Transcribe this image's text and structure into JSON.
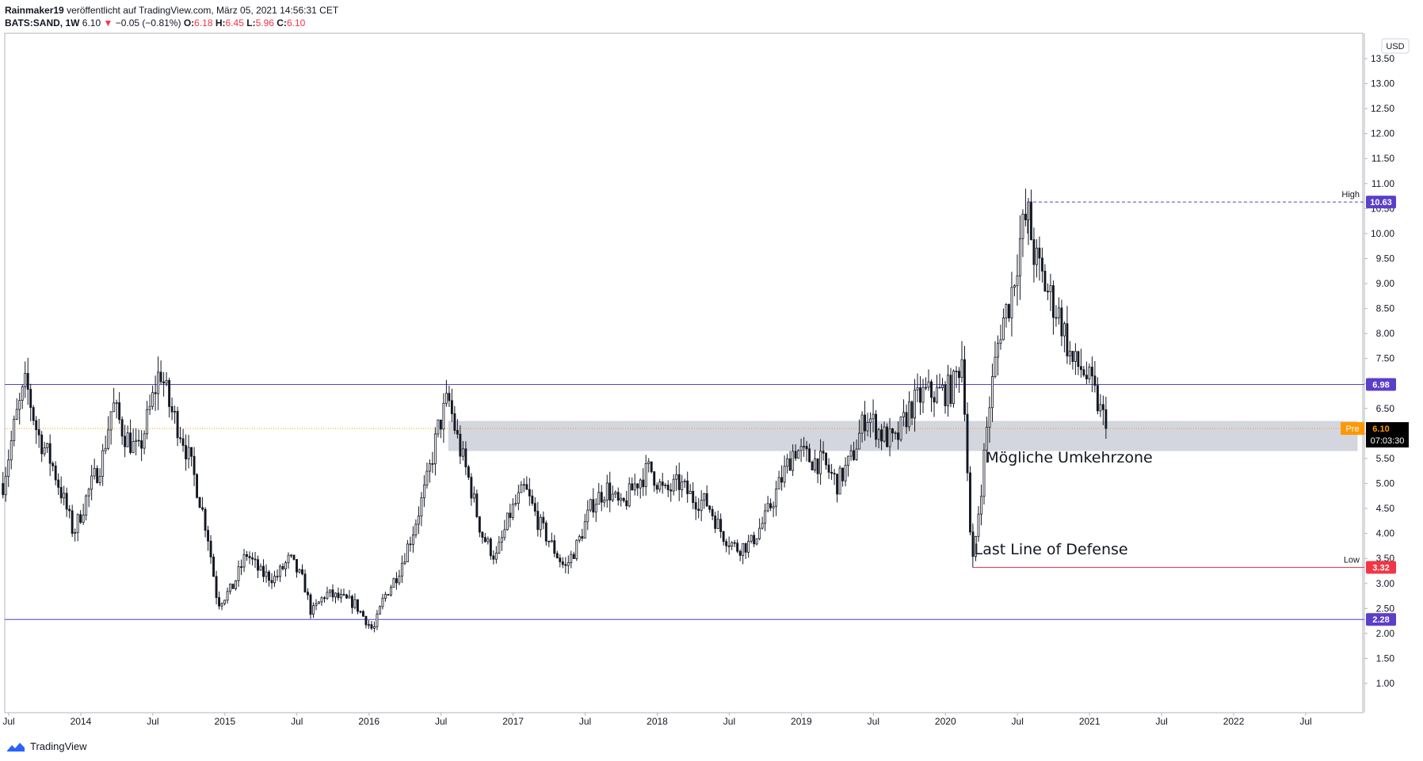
{
  "header": {
    "author": "Rainmaker19",
    "published": "veröffentlicht auf TradingView.com, März 05, 2021 14:56:31 CET",
    "symbol": "BATS:SAND, 1W",
    "last": "6.10",
    "change": "−0.05 (−0.81%)",
    "o_label": "O:",
    "o": "6.18",
    "h_label": "H:",
    "h": "6.45",
    "l_label": "L:",
    "l": "5.96",
    "c_label": "C:",
    "c": "6.10"
  },
  "footer": {
    "brand": "TradingView"
  },
  "colors": {
    "candle": "#131722",
    "hline": "#5b3fc9",
    "badge": "#5b3fc9",
    "low_line": "#f23645",
    "pre": "#ff9800",
    "zone": "#d1d4dc",
    "axis_text": "#131722"
  },
  "chart_data": {
    "type": "candlestick",
    "currency": "USD",
    "y_axis": {
      "min": 0.5,
      "max": 14,
      "ticks": [
        "1.00",
        "1.50",
        "2.00",
        "2.50",
        "3.00",
        "3.50",
        "4.00",
        "4.50",
        "5.00",
        "5.50",
        "6.00",
        "6.50",
        "7.00",
        "7.50",
        "8.00",
        "8.50",
        "9.00",
        "9.50",
        "10.00",
        "10.50",
        "11.00",
        "11.50",
        "12.00",
        "12.50",
        "13.00",
        "13.50"
      ]
    },
    "x_axis": {
      "start": 2013.46,
      "end": 2022.93,
      "ticks": [
        {
          "t": 2013.5,
          "label": "Jul"
        },
        {
          "t": 2014.0,
          "label": "2014"
        },
        {
          "t": 2014.5,
          "label": "Jul"
        },
        {
          "t": 2015.0,
          "label": "2015"
        },
        {
          "t": 2015.5,
          "label": "Jul"
        },
        {
          "t": 2016.0,
          "label": "2016"
        },
        {
          "t": 2016.5,
          "label": "Jul"
        },
        {
          "t": 2017.0,
          "label": "2017"
        },
        {
          "t": 2017.5,
          "label": "Jul"
        },
        {
          "t": 2018.0,
          "label": "2018"
        },
        {
          "t": 2018.5,
          "label": "Jul"
        },
        {
          "t": 2019.0,
          "label": "2019"
        },
        {
          "t": 2019.5,
          "label": "Jul"
        },
        {
          "t": 2020.0,
          "label": "2020"
        },
        {
          "t": 2020.5,
          "label": "Jul"
        },
        {
          "t": 2021.0,
          "label": "2021"
        },
        {
          "t": 2021.5,
          "label": "Jul"
        },
        {
          "t": 2022.0,
          "label": "2022"
        },
        {
          "t": 2022.5,
          "label": "Jul"
        }
      ]
    },
    "weekly_close_path": [
      [
        2013.46,
        5.0
      ],
      [
        2013.55,
        6.3
      ],
      [
        2013.62,
        7.0
      ],
      [
        2013.7,
        6.0
      ],
      [
        2013.8,
        5.4
      ],
      [
        2013.9,
        4.5
      ],
      [
        2013.95,
        4.0
      ],
      [
        2014.05,
        4.8
      ],
      [
        2014.15,
        5.5
      ],
      [
        2014.22,
        6.6
      ],
      [
        2014.3,
        6.0
      ],
      [
        2014.4,
        5.6
      ],
      [
        2014.5,
        6.7
      ],
      [
        2014.55,
        7.3
      ],
      [
        2014.62,
        6.5
      ],
      [
        2014.7,
        6.0
      ],
      [
        2014.8,
        5.0
      ],
      [
        2014.88,
        4.0
      ],
      [
        2014.95,
        2.6
      ],
      [
        2015.05,
        2.9
      ],
      [
        2015.15,
        3.6
      ],
      [
        2015.25,
        3.2
      ],
      [
        2015.35,
        3.1
      ],
      [
        2015.45,
        3.5
      ],
      [
        2015.55,
        3.0
      ],
      [
        2015.6,
        2.4
      ],
      [
        2015.7,
        2.8
      ],
      [
        2015.8,
        2.7
      ],
      [
        2015.9,
        2.6
      ],
      [
        2016.03,
        2.05
      ],
      [
        2016.1,
        2.7
      ],
      [
        2016.2,
        3.2
      ],
      [
        2016.3,
        4.0
      ],
      [
        2016.4,
        5.0
      ],
      [
        2016.48,
        6.1
      ],
      [
        2016.55,
        6.7
      ],
      [
        2016.62,
        5.8
      ],
      [
        2016.7,
        5.0
      ],
      [
        2016.78,
        4.0
      ],
      [
        2016.88,
        3.5
      ],
      [
        2016.98,
        4.4
      ],
      [
        2017.08,
        4.9
      ],
      [
        2017.18,
        4.2
      ],
      [
        2017.28,
        3.7
      ],
      [
        2017.36,
        3.3
      ],
      [
        2017.45,
        3.8
      ],
      [
        2017.55,
        4.6
      ],
      [
        2017.65,
        4.9
      ],
      [
        2017.75,
        4.5
      ],
      [
        2017.85,
        5.0
      ],
      [
        2017.95,
        5.3
      ],
      [
        2018.05,
        4.8
      ],
      [
        2018.15,
        5.0
      ],
      [
        2018.25,
        4.7
      ],
      [
        2018.35,
        4.6
      ],
      [
        2018.45,
        4.0
      ],
      [
        2018.55,
        3.7
      ],
      [
        2018.65,
        3.8
      ],
      [
        2018.75,
        4.3
      ],
      [
        2018.85,
        5.0
      ],
      [
        2018.95,
        5.7
      ],
      [
        2019.05,
        5.5
      ],
      [
        2019.15,
        5.4
      ],
      [
        2019.25,
        5.0
      ],
      [
        2019.35,
        5.5
      ],
      [
        2019.45,
        6.4
      ],
      [
        2019.55,
        6.0
      ],
      [
        2019.65,
        5.8
      ],
      [
        2019.75,
        6.5
      ],
      [
        2019.85,
        6.8
      ],
      [
        2019.95,
        6.8
      ],
      [
        2020.05,
        6.9
      ],
      [
        2020.12,
        7.6
      ],
      [
        2020.17,
        4.0
      ],
      [
        2020.19,
        3.4
      ],
      [
        2020.25,
        5.0
      ],
      [
        2020.3,
        6.5
      ],
      [
        2020.38,
        8.1
      ],
      [
        2020.45,
        8.7
      ],
      [
        2020.52,
        9.9
      ],
      [
        2020.57,
        10.4
      ],
      [
        2020.62,
        9.5
      ],
      [
        2020.7,
        8.9
      ],
      [
        2020.8,
        8.3
      ],
      [
        2020.88,
        7.4
      ],
      [
        2020.95,
        7.3
      ],
      [
        2021.02,
        6.9
      ],
      [
        2021.08,
        6.4
      ],
      [
        2021.13,
        6.1
      ]
    ],
    "levels": [
      {
        "value": 6.98,
        "label": "6.98",
        "style": "solid",
        "color": "#5b3fc9"
      },
      {
        "value": 2.28,
        "label": "2.28",
        "style": "solid",
        "color": "#5b3fc9"
      }
    ],
    "high": {
      "value": 10.63,
      "label": "10.63",
      "text": "High",
      "from": 2020.57
    },
    "low": {
      "value": 3.32,
      "label": "3.32",
      "text": "Low",
      "from": 2020.19
    },
    "current": {
      "value": 6.1,
      "label": "6.10",
      "tag": "Pre",
      "countdown": "07:03:30"
    },
    "zone": {
      "from": 2016.55,
      "to": 2022.86,
      "top": 6.25,
      "bottom": 5.65
    },
    "annotations": [
      {
        "text": "Mögliche Umkehrzone",
        "t": 2020.28,
        "v": 5.42
      },
      {
        "text": "Last Line of Defense",
        "t": 2020.2,
        "v": 3.58
      }
    ]
  }
}
